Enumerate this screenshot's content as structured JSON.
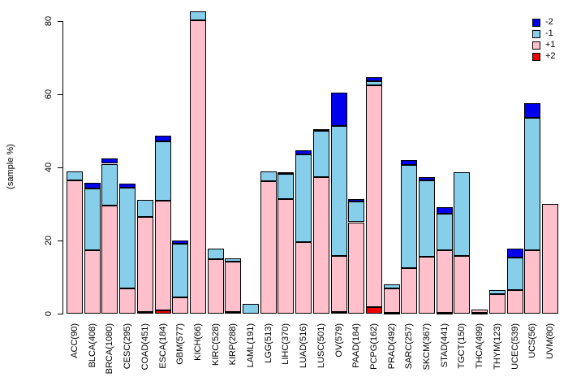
{
  "chart_data": {
    "type": "bar",
    "variant": "stacked-vertical",
    "title": "",
    "xlabel": "",
    "ylabel": "(sample %)",
    "ylim": [
      0,
      80
    ],
    "yticks": [
      0,
      20,
      40,
      60,
      80
    ],
    "grid": false,
    "legend_position": "top-right",
    "stack_order_bottom_to_top": [
      "+2",
      "+1",
      "-1",
      "-2"
    ],
    "legend": [
      {
        "label": "-2",
        "color": "#0000EE"
      },
      {
        "label": "-1",
        "color": "#87CEEB"
      },
      {
        "label": "+1",
        "color": "#FFC0CB"
      },
      {
        "label": "+2",
        "color": "#EE0000"
      }
    ],
    "categories": [
      "ACC(90)",
      "BLCA(408)",
      "BRCA(1080)",
      "CESC(295)",
      "COAD(451)",
      "ESCA(184)",
      "GBM(577)",
      "KICH(66)",
      "KIRC(528)",
      "KIRP(288)",
      "LAML(191)",
      "LGG(513)",
      "LIHC(370)",
      "LUAD(516)",
      "LUSC(501)",
      "OV(579)",
      "PAAD(184)",
      "PCPG(162)",
      "PRAD(492)",
      "SARC(257)",
      "SKCM(367)",
      "STAD(441)",
      "TGCT(150)",
      "THCA(499)",
      "THYM(123)",
      "UCEC(539)",
      "UCS(56)",
      "UVM(80)"
    ],
    "series": [
      {
        "name": "+2",
        "color": "#EE0000",
        "values": [
          0,
          0,
          0,
          0,
          0.4,
          0.8,
          0,
          0,
          0,
          0.4,
          0,
          0,
          0,
          0,
          0,
          0.5,
          0,
          1.7,
          0.3,
          0,
          0,
          0.3,
          0,
          0.2,
          0,
          0,
          0,
          0
        ]
      },
      {
        "name": "+1",
        "color": "#FFC0CB",
        "values": [
          36.4,
          17.3,
          29.6,
          6.9,
          26.1,
          30.0,
          4.4,
          80.3,
          14.9,
          13.9,
          0,
          36.3,
          31.3,
          19.5,
          37.4,
          15.3,
          25.0,
          60.8,
          6.6,
          12.4,
          15.6,
          17.1,
          15.8,
          1.0,
          5.4,
          6.4,
          17.3,
          30.0
        ]
      },
      {
        "name": "-1",
        "color": "#87CEEB",
        "values": [
          2.6,
          17.0,
          11.4,
          27.6,
          4.6,
          16.4,
          14.7,
          2.4,
          2.9,
          0.9,
          2.6,
          2.6,
          6.9,
          24.1,
          12.7,
          35.6,
          5.6,
          1.1,
          1.2,
          28.2,
          20.9,
          9.9,
          22.8,
          0,
          1.0,
          8.9,
          36.3,
          0
        ]
      },
      {
        "name": "-2",
        "color": "#0000EE",
        "values": [
          0,
          1.4,
          1.4,
          1.1,
          0,
          1.5,
          0.9,
          0,
          0,
          0,
          0,
          0,
          0.5,
          1.1,
          0.4,
          9.0,
          0.7,
          1.1,
          0,
          1.3,
          0.8,
          1.8,
          0,
          0,
          0,
          2.5,
          4.0,
          0
        ]
      }
    ]
  }
}
